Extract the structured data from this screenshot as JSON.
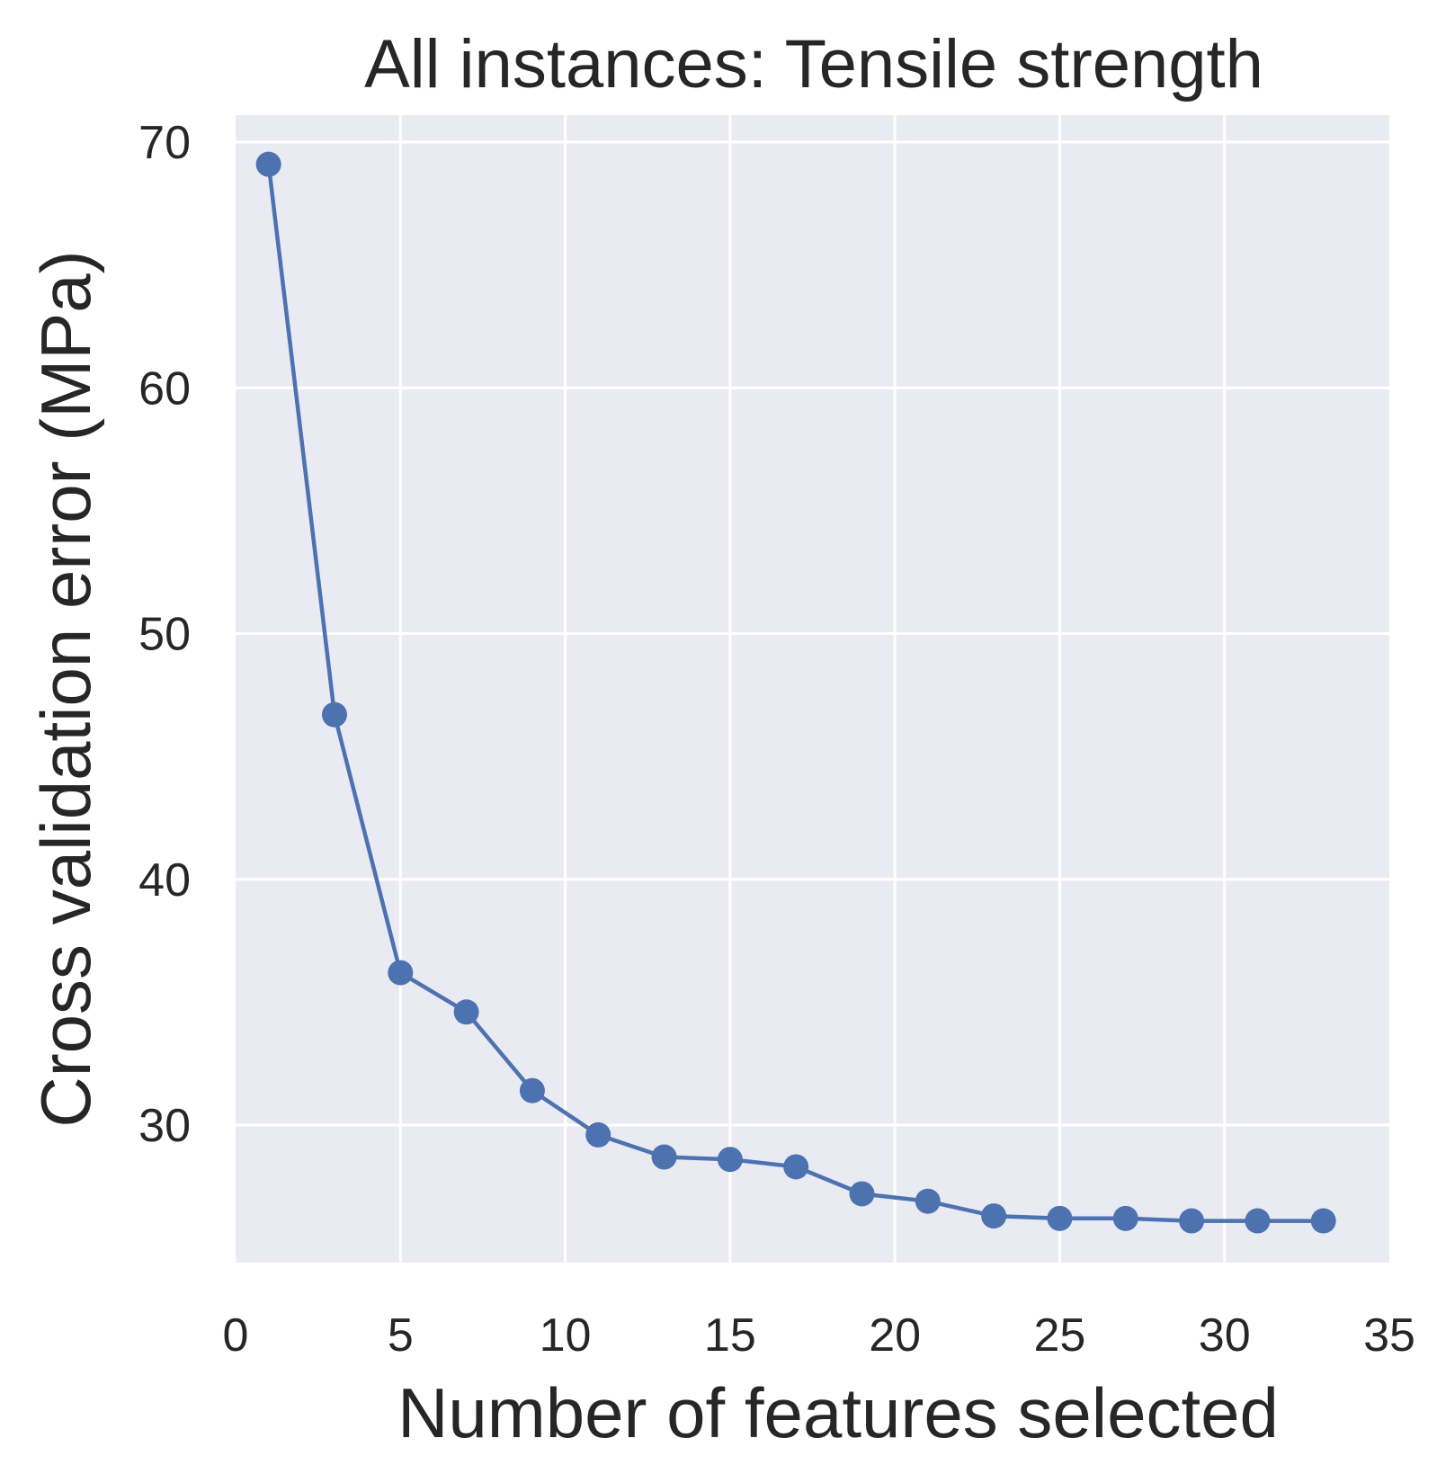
{
  "chart_data": {
    "type": "line",
    "title": "All instances: Tensile strength",
    "xlabel": "Number of features selected",
    "ylabel": "Cross validation error (MPa)",
    "xlim": [
      0,
      35
    ],
    "ylim": [
      24.4,
      71.1
    ],
    "xticks": [
      0,
      5,
      10,
      15,
      20,
      25,
      30,
      35
    ],
    "yticks": [
      30,
      40,
      50,
      60,
      70
    ],
    "grid": true,
    "series": [
      {
        "color": "#4C72B0",
        "marker": "circle",
        "x": [
          1,
          3,
          5,
          7,
          9,
          11,
          13,
          15,
          17,
          19,
          21,
          23,
          25,
          27,
          29,
          31,
          33
        ],
        "y": [
          69.1,
          46.7,
          36.2,
          34.6,
          31.4,
          29.6,
          28.7,
          28.6,
          28.3,
          27.2,
          26.9,
          26.3,
          26.2,
          26.2,
          26.1,
          26.1,
          26.1
        ]
      }
    ]
  }
}
